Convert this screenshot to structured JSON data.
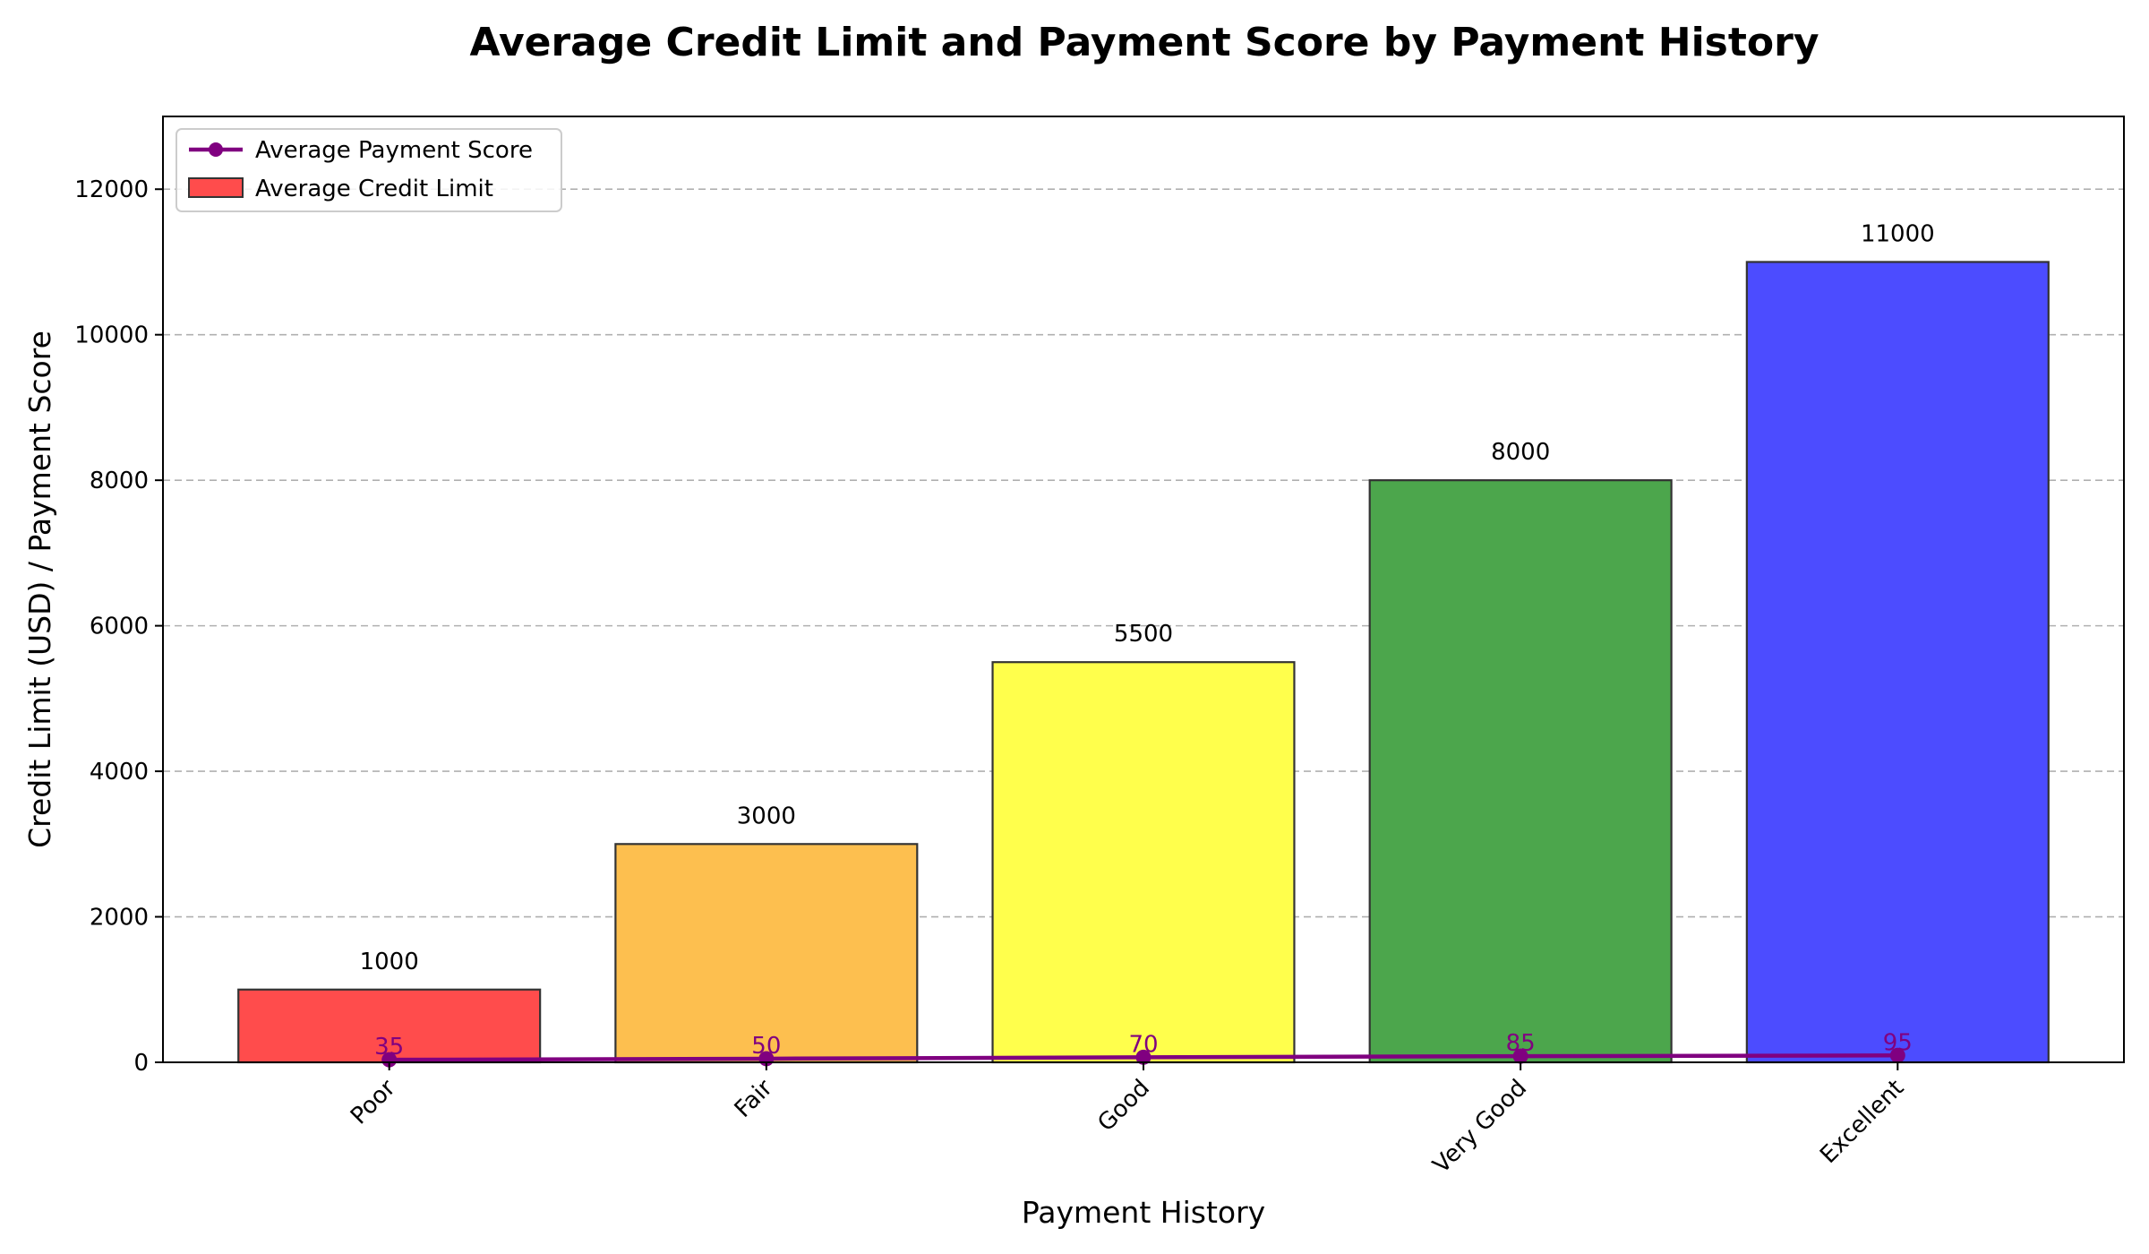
{
  "chart_data": {
    "type": "bar",
    "title": "Average Credit Limit and Payment Score by Payment History",
    "xlabel": "Payment History",
    "ylabel": "Credit Limit (USD) / Payment Score",
    "categories": [
      "Poor",
      "Fair",
      "Good",
      "Very Good",
      "Excellent"
    ],
    "ylim": [
      0,
      13000
    ],
    "yticks": [
      0,
      2000,
      4000,
      6000,
      8000,
      10000,
      12000
    ],
    "ytick_labels": [
      "0",
      "2000",
      "4000",
      "6000",
      "8000",
      "10000",
      "12000"
    ],
    "grid": "y-dashed",
    "legend_position": "top-left",
    "series": [
      {
        "name": "Average Credit Limit",
        "type": "bar",
        "values": [
          1000,
          3000,
          5500,
          8000,
          11000
        ],
        "value_labels": [
          "1000",
          "3000",
          "5500",
          "8000",
          "11000"
        ],
        "colors": [
          "#ff4c4c",
          "#fdbf4f",
          "#ffff4c",
          "#4ca64c",
          "#4c4cff"
        ],
        "edge_color": "#333333"
      },
      {
        "name": "Average Payment Score",
        "type": "line",
        "values": [
          35,
          50,
          70,
          85,
          95
        ],
        "value_labels": [
          "35",
          "50",
          "70",
          "85",
          "95"
        ],
        "color": "#800080",
        "marker": "circle"
      }
    ]
  }
}
